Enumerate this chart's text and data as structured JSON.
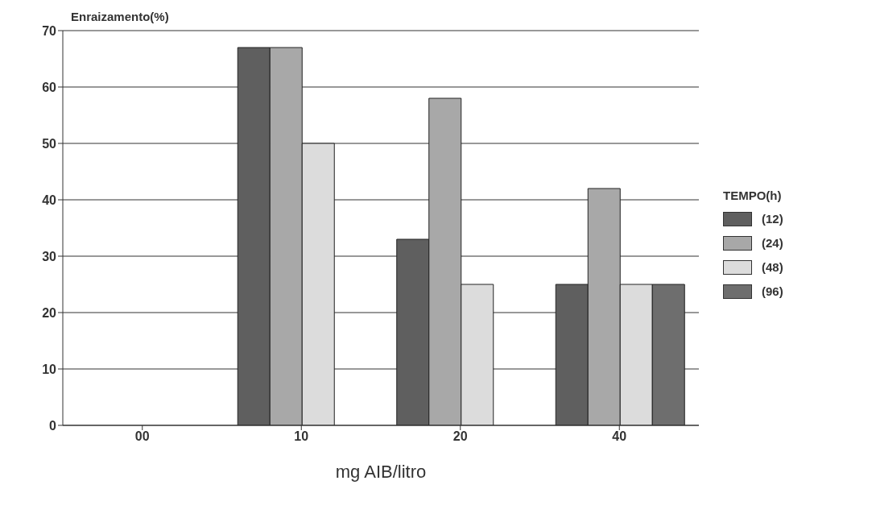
{
  "chart_data": {
    "type": "bar",
    "ylabel": "Enraizamento(%)",
    "xlabel": "mg AIB/litro",
    "legend_title": "TEMPO(h)",
    "categories": [
      "00",
      "10",
      "20",
      "40"
    ],
    "series": [
      {
        "name": "(12)",
        "color": "#5f5f5f",
        "values": [
          0,
          67,
          33,
          25
        ]
      },
      {
        "name": "(24)",
        "color": "#a8a8a8",
        "values": [
          0,
          67,
          58,
          42
        ]
      },
      {
        "name": "(48)",
        "color": "#dcdcdc",
        "values": [
          0,
          50,
          25,
          25
        ]
      },
      {
        "name": "(96)",
        "color": "#6e6e6e",
        "values": [
          0,
          0,
          0,
          25
        ]
      }
    ],
    "ylim": [
      0,
      70
    ],
    "yticks": [
      0,
      10,
      20,
      30,
      40,
      50,
      60,
      70
    ],
    "grid": "y",
    "legend": "right"
  }
}
